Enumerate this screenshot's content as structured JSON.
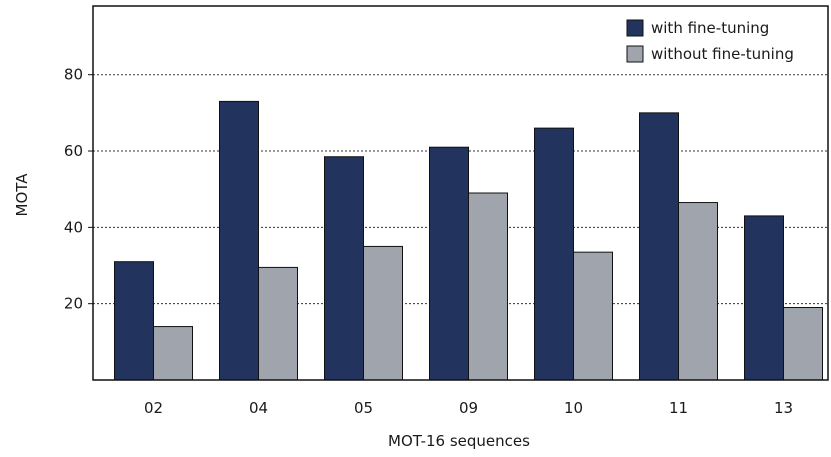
{
  "chart_data": {
    "type": "bar",
    "xlabel": "MOT-16 sequences",
    "ylabel": "MOTA",
    "categories": [
      "02",
      "04",
      "05",
      "09",
      "10",
      "11",
      "13"
    ],
    "series": [
      {
        "name": "with fine-tuning",
        "color": "#22335e",
        "values": [
          31,
          73,
          58.5,
          61,
          66,
          70,
          43
        ]
      },
      {
        "name": "without fine-tuning",
        "color": "#a0a4ad",
        "values": [
          14,
          29.5,
          35,
          49,
          33.5,
          46.5,
          19
        ]
      }
    ],
    "ylim": [
      0,
      98
    ],
    "yticks": [
      20,
      40,
      60,
      80
    ],
    "grid": "horizontal-dotted",
    "legend_position": "top-right"
  }
}
